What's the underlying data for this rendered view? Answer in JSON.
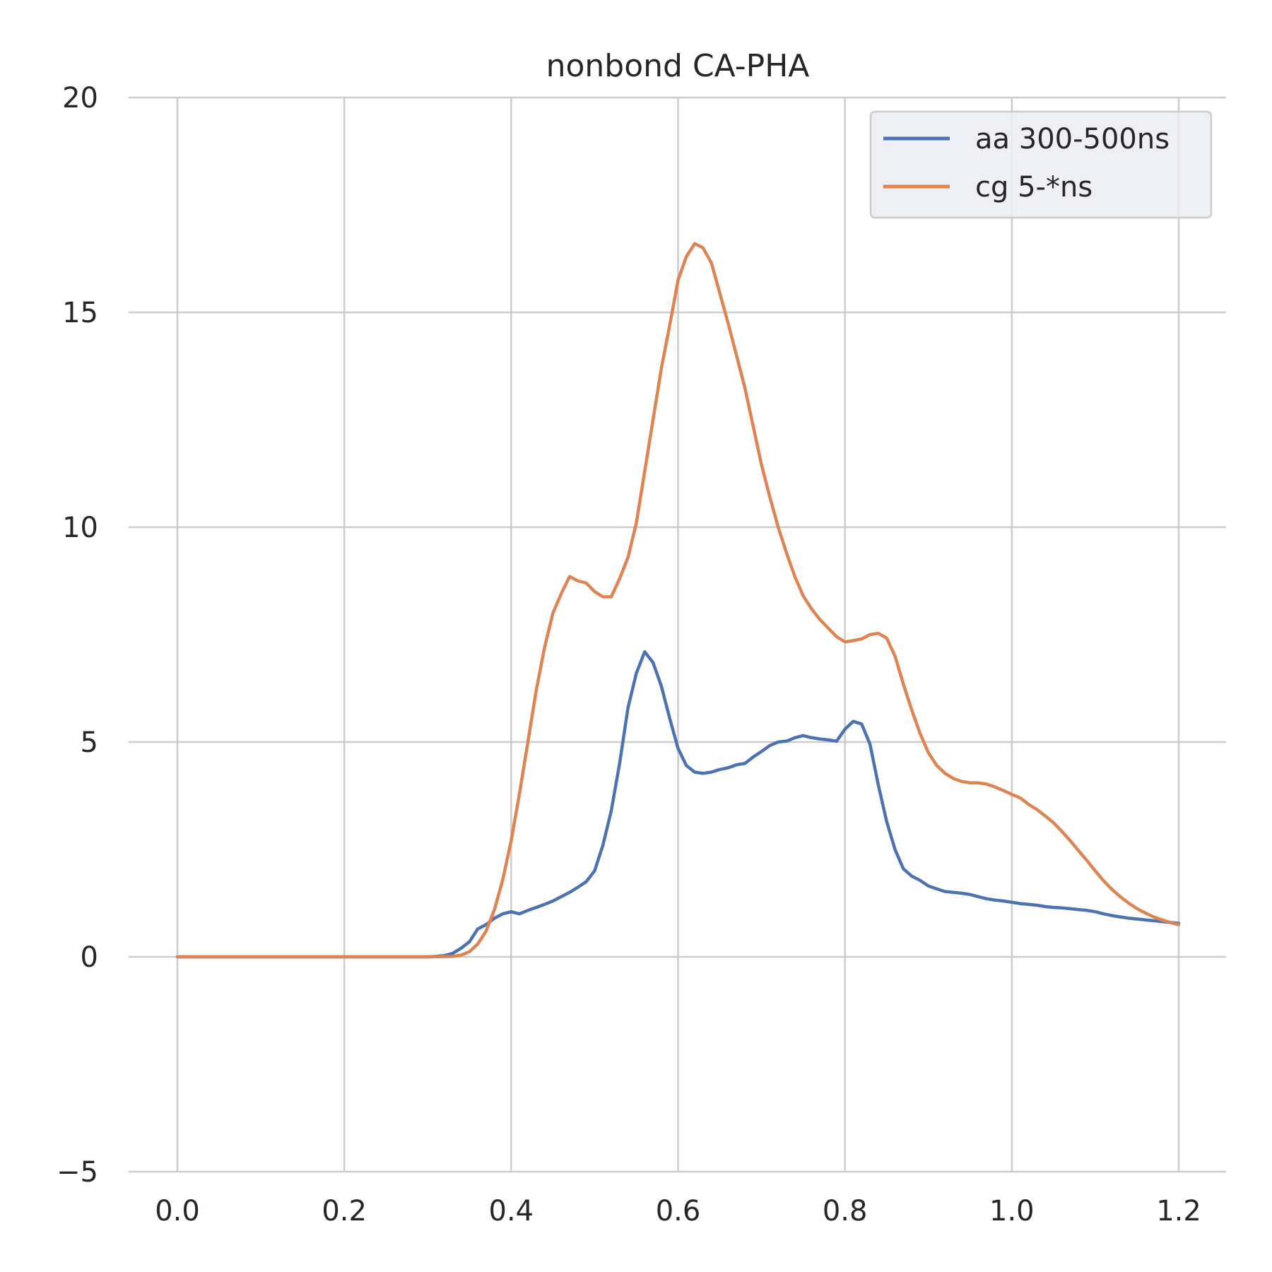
{
  "chart_data": {
    "type": "line",
    "title": "nonbond CA-PHA",
    "xlabel": "",
    "ylabel": "",
    "xlim": [
      0.0,
      1.2
    ],
    "ylim": [
      -5,
      20
    ],
    "xticks": [
      "0.0",
      "0.2",
      "0.4",
      "0.6",
      "0.8",
      "1.0",
      "1.2"
    ],
    "yticks": [
      "20",
      "15",
      "10",
      "5",
      "0",
      "−5"
    ],
    "grid": true,
    "legend_position": "top-right",
    "series": [
      {
        "name": "aa 300-500ns",
        "color": "#4c72b0",
        "x": [
          0.0,
          0.1,
          0.2,
          0.3,
          0.31,
          0.32,
          0.33,
          0.34,
          0.35,
          0.36,
          0.37,
          0.38,
          0.39,
          0.4,
          0.41,
          0.42,
          0.43,
          0.44,
          0.45,
          0.46,
          0.47,
          0.48,
          0.49,
          0.5,
          0.51,
          0.52,
          0.53,
          0.54,
          0.55,
          0.56,
          0.57,
          0.58,
          0.59,
          0.6,
          0.61,
          0.62,
          0.63,
          0.64,
          0.65,
          0.66,
          0.67,
          0.68,
          0.69,
          0.7,
          0.71,
          0.72,
          0.73,
          0.74,
          0.75,
          0.76,
          0.77,
          0.78,
          0.79,
          0.8,
          0.81,
          0.82,
          0.83,
          0.84,
          0.85,
          0.86,
          0.87,
          0.88,
          0.89,
          0.9,
          0.91,
          0.92,
          0.93,
          0.94,
          0.95,
          0.96,
          0.97,
          0.98,
          0.99,
          1.0,
          1.01,
          1.02,
          1.03,
          1.04,
          1.05,
          1.06,
          1.07,
          1.08,
          1.09,
          1.1,
          1.11,
          1.12,
          1.13,
          1.14,
          1.15,
          1.16,
          1.17,
          1.18,
          1.19,
          1.2
        ],
        "y": [
          0,
          0,
          0,
          0,
          0.01,
          0.03,
          0.08,
          0.2,
          0.35,
          0.65,
          0.75,
          0.9,
          1.0,
          1.05,
          1.0,
          1.08,
          1.15,
          1.22,
          1.3,
          1.4,
          1.5,
          1.62,
          1.75,
          2.0,
          2.6,
          3.4,
          4.5,
          5.8,
          6.6,
          7.1,
          6.85,
          6.3,
          5.55,
          4.85,
          4.45,
          4.3,
          4.27,
          4.3,
          4.36,
          4.4,
          4.47,
          4.5,
          4.65,
          4.78,
          4.92,
          5.0,
          5.02,
          5.1,
          5.15,
          5.1,
          5.07,
          5.05,
          5.02,
          5.3,
          5.48,
          5.42,
          4.95,
          4.0,
          3.15,
          2.5,
          2.05,
          1.88,
          1.78,
          1.65,
          1.58,
          1.52,
          1.5,
          1.48,
          1.45,
          1.4,
          1.35,
          1.32,
          1.3,
          1.27,
          1.24,
          1.22,
          1.2,
          1.17,
          1.15,
          1.14,
          1.12,
          1.1,
          1.08,
          1.05,
          1.0,
          0.96,
          0.93,
          0.9,
          0.88,
          0.86,
          0.84,
          0.82,
          0.8,
          0.78
        ]
      },
      {
        "name": "cg 5-*ns",
        "color": "#dd8452",
        "x": [
          0.0,
          0.1,
          0.2,
          0.3,
          0.33,
          0.34,
          0.35,
          0.36,
          0.37,
          0.38,
          0.39,
          0.4,
          0.41,
          0.42,
          0.43,
          0.44,
          0.45,
          0.46,
          0.47,
          0.48,
          0.49,
          0.5,
          0.51,
          0.52,
          0.53,
          0.54,
          0.55,
          0.56,
          0.57,
          0.58,
          0.59,
          0.6,
          0.61,
          0.62,
          0.63,
          0.64,
          0.65,
          0.66,
          0.67,
          0.68,
          0.69,
          0.7,
          0.71,
          0.72,
          0.73,
          0.74,
          0.75,
          0.76,
          0.77,
          0.78,
          0.79,
          0.8,
          0.81,
          0.82,
          0.83,
          0.84,
          0.85,
          0.86,
          0.87,
          0.88,
          0.89,
          0.9,
          0.91,
          0.92,
          0.93,
          0.94,
          0.95,
          0.96,
          0.97,
          0.98,
          0.99,
          1.0,
          1.01,
          1.02,
          1.03,
          1.04,
          1.05,
          1.06,
          1.07,
          1.08,
          1.09,
          1.1,
          1.11,
          1.12,
          1.13,
          1.14,
          1.15,
          1.16,
          1.17,
          1.18,
          1.19,
          1.2
        ],
        "y": [
          0,
          0,
          0,
          0,
          0.01,
          0.04,
          0.12,
          0.3,
          0.6,
          1.1,
          1.8,
          2.7,
          3.8,
          5.0,
          6.2,
          7.2,
          8.0,
          8.45,
          8.85,
          8.75,
          8.7,
          8.5,
          8.38,
          8.38,
          8.8,
          9.3,
          10.1,
          11.3,
          12.5,
          13.7,
          14.7,
          15.75,
          16.3,
          16.6,
          16.5,
          16.15,
          15.45,
          14.75,
          14.0,
          13.25,
          12.35,
          11.45,
          10.7,
          10.0,
          9.4,
          8.85,
          8.4,
          8.1,
          7.85,
          7.65,
          7.45,
          7.33,
          7.36,
          7.4,
          7.5,
          7.53,
          7.42,
          7.0,
          6.35,
          5.75,
          5.2,
          4.75,
          4.45,
          4.27,
          4.15,
          4.08,
          4.05,
          4.05,
          4.02,
          3.95,
          3.87,
          3.78,
          3.7,
          3.55,
          3.43,
          3.28,
          3.12,
          2.92,
          2.7,
          2.47,
          2.24,
          2.0,
          1.77,
          1.57,
          1.4,
          1.25,
          1.12,
          1.02,
          0.93,
          0.86,
          0.8,
          0.75
        ]
      }
    ]
  }
}
